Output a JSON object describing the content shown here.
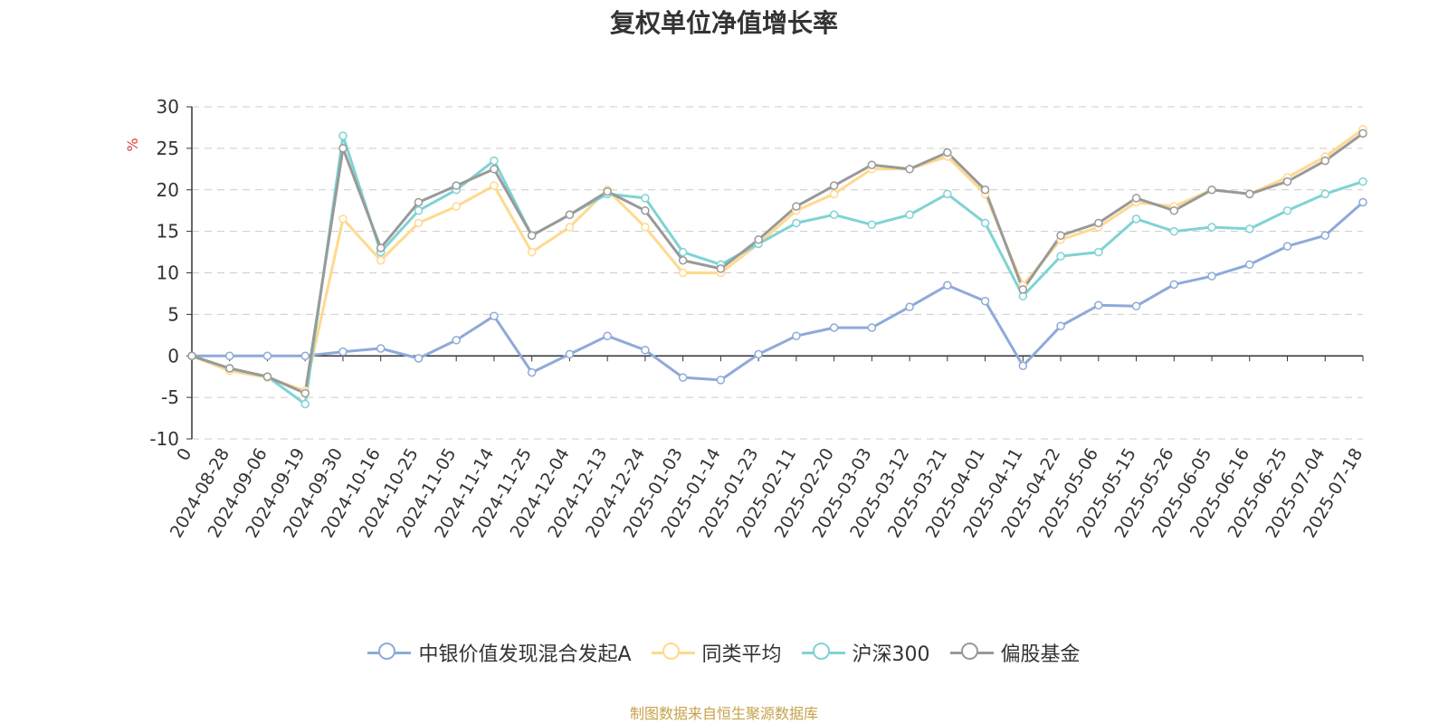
{
  "chart_data": {
    "type": "line",
    "title": "复权单位净值增长率",
    "ylabel": "%",
    "ylim": [
      -10,
      30
    ],
    "yticks": [
      -10,
      -5,
      0,
      5,
      10,
      15,
      20,
      25,
      30
    ],
    "grid": true,
    "legend_position": "bottom",
    "x_tick_labels": [
      "0",
      "2024-08-28",
      "2024-09-06",
      "2024-09-19",
      "2024-09-30",
      "2024-10-16",
      "2024-10-25",
      "2024-11-05",
      "2024-11-14",
      "2024-11-25",
      "2024-12-04",
      "2024-12-13",
      "2024-12-24",
      "2025-01-03",
      "2025-01-14",
      "2025-01-23",
      "2025-02-11",
      "2025-02-20",
      "2025-03-03",
      "2025-03-12",
      "2025-03-21",
      "2025-04-01",
      "2025-04-11",
      "2025-04-22",
      "2025-05-06",
      "2025-05-15",
      "2025-05-26",
      "2025-06-05",
      "2025-06-16",
      "2025-06-25",
      "2025-07-04",
      "2025-07-18"
    ],
    "series": [
      {
        "name": "中银价值发现混合发起A",
        "color": "#8eaad9",
        "values": [
          0,
          0,
          0,
          0,
          0.5,
          0.9,
          -0.3,
          1.9,
          4.8,
          -2,
          0.2,
          2.4,
          0.7,
          -2.6,
          -2.9,
          0.2,
          2.4,
          3.4,
          3.4,
          5.9,
          8.5,
          6.6,
          -1.2,
          3.6,
          6.1,
          6.0,
          8.6,
          9.6,
          11.0,
          13.2,
          14.5,
          18.5
        ]
      },
      {
        "name": "同类平均",
        "color": "#ffd98e",
        "values": [
          0,
          -1.8,
          -2.6,
          -4.2,
          16.5,
          11.5,
          16.0,
          18.0,
          20.5,
          12.5,
          15.5,
          20.0,
          15.5,
          10.0,
          10.0,
          13.5,
          17.5,
          19.5,
          22.5,
          22.5,
          24.0,
          19.5,
          8.5,
          14.0,
          15.5,
          18.5,
          18.0,
          20.0,
          19.5,
          21.5,
          24.0,
          27.3
        ]
      },
      {
        "name": "沪深300",
        "color": "#7fd3d3",
        "values": [
          0,
          -1.5,
          -2.5,
          -5.8,
          26.5,
          12.5,
          17.5,
          20.0,
          23.5,
          14.5,
          17.0,
          19.5,
          19.0,
          12.5,
          11.0,
          13.5,
          16.0,
          17.0,
          15.8,
          17.0,
          19.5,
          16.0,
          7.2,
          12.0,
          12.5,
          16.5,
          15.0,
          15.5,
          15.3,
          17.5,
          19.5,
          21.0
        ]
      },
      {
        "name": "偏股基金",
        "color": "#999999",
        "values": [
          0,
          -1.5,
          -2.5,
          -4.5,
          25.0,
          13.0,
          18.5,
          20.5,
          22.5,
          14.5,
          17.0,
          19.8,
          17.5,
          11.5,
          10.5,
          14.0,
          18.0,
          20.5,
          23.0,
          22.5,
          24.5,
          20.0,
          8.0,
          14.5,
          16.0,
          19.0,
          17.5,
          20.0,
          19.5,
          21.0,
          23.5,
          26.8
        ]
      }
    ]
  },
  "source_note": "制图数据来自恒生聚源数据库"
}
